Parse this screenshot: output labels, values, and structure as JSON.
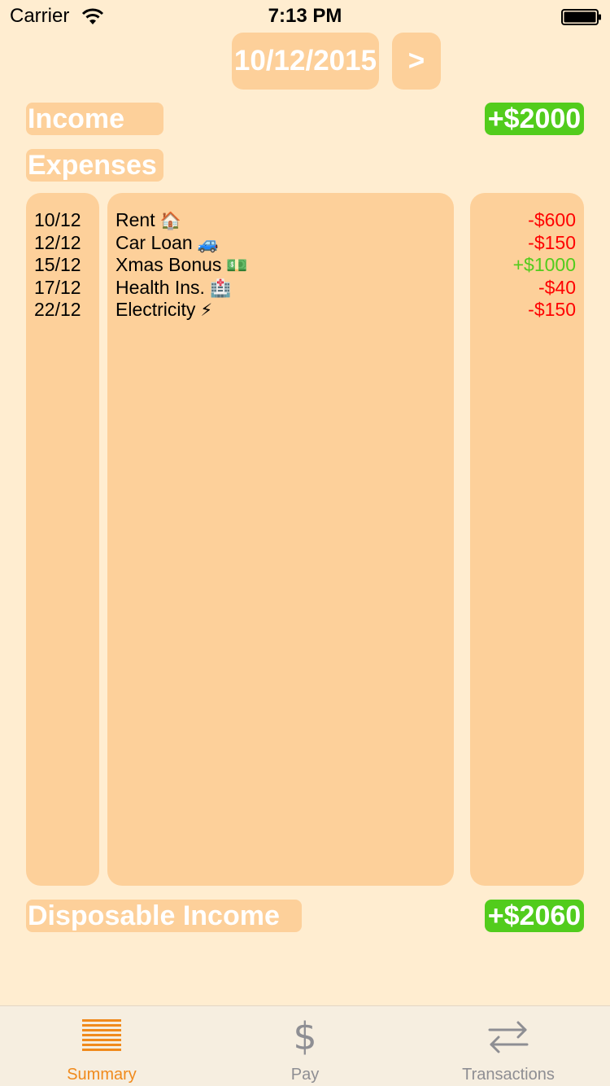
{
  "status_bar": {
    "carrier": "Carrier",
    "time": "7:13 PM"
  },
  "date_nav": {
    "date": "10/12/2015",
    "next_label": ">"
  },
  "income": {
    "label": "Income",
    "amount": "+$2000"
  },
  "expenses": {
    "label": "Expenses",
    "items": [
      {
        "date": "10/12",
        "name": "Rent",
        "emoji": "🏠",
        "amount": "-$600",
        "sign": "neg"
      },
      {
        "date": "12/12",
        "name": "Car Loan",
        "emoji": "🚙",
        "amount": "-$150",
        "sign": "neg"
      },
      {
        "date": "15/12",
        "name": "Xmas Bonus",
        "emoji": "💵",
        "amount": "+$1000",
        "sign": "pos"
      },
      {
        "date": "17/12",
        "name": "Health Ins.",
        "emoji": "🏥",
        "amount": "-$40",
        "sign": "neg"
      },
      {
        "date": "22/12",
        "name": "Electricity",
        "emoji": "⚡",
        "amount": "-$150",
        "sign": "neg"
      }
    ]
  },
  "disposable": {
    "label": "Disposable Income",
    "amount": "+$2060"
  },
  "tabs": [
    {
      "label": "Summary",
      "icon": "list-lines-icon",
      "active": true
    },
    {
      "label": "Pay",
      "icon": "dollar-icon",
      "active": false
    },
    {
      "label": "Transactions",
      "icon": "transfer-arrows-icon",
      "active": false
    }
  ],
  "colors": {
    "background": "#FFEDD0",
    "panel": "#FDD09A",
    "positive": "#52CC1C",
    "negative": "#FF0000",
    "active_tab": "#F08A1C",
    "inactive_tab": "#8E8E93"
  }
}
